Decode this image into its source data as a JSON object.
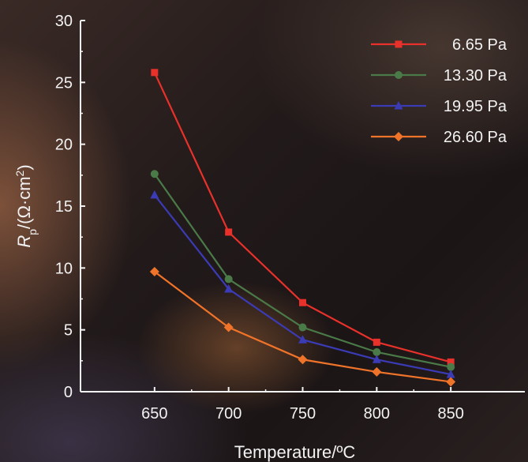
{
  "chart_data": {
    "type": "line",
    "title": "",
    "xlabel": "Temperature/ºC",
    "ylabel": {
      "base": "R",
      "sub": "p",
      "unit_open": "/(Ω·cm",
      "sup": "2",
      "unit_close": ")"
    },
    "x": [
      650,
      700,
      750,
      800,
      850
    ],
    "xlim": [
      600,
      900
    ],
    "ylim": [
      0,
      30
    ],
    "x_ticks": [
      "650",
      "700",
      "750",
      "800",
      "850"
    ],
    "y_ticks": [
      "0",
      "5",
      "10",
      "15",
      "20",
      "25",
      "30"
    ],
    "grid": false,
    "legend_position": "top-right",
    "series": [
      {
        "name": "6.65 Pa",
        "color": "#e8312a",
        "marker": "square",
        "values": [
          25.8,
          12.9,
          7.2,
          4.0,
          2.4
        ]
      },
      {
        "name": "13.30 Pa",
        "color": "#4a7a48",
        "marker": "circle",
        "values": [
          17.6,
          9.1,
          5.2,
          3.2,
          2.0
        ]
      },
      {
        "name": "19.95 Pa",
        "color": "#3b3bb5",
        "marker": "triangle",
        "values": [
          15.9,
          8.3,
          4.2,
          2.6,
          1.4
        ]
      },
      {
        "name": "26.60 Pa",
        "color": "#f0732a",
        "marker": "diamond",
        "values": [
          9.7,
          5.2,
          2.6,
          1.6,
          0.8
        ]
      }
    ]
  }
}
